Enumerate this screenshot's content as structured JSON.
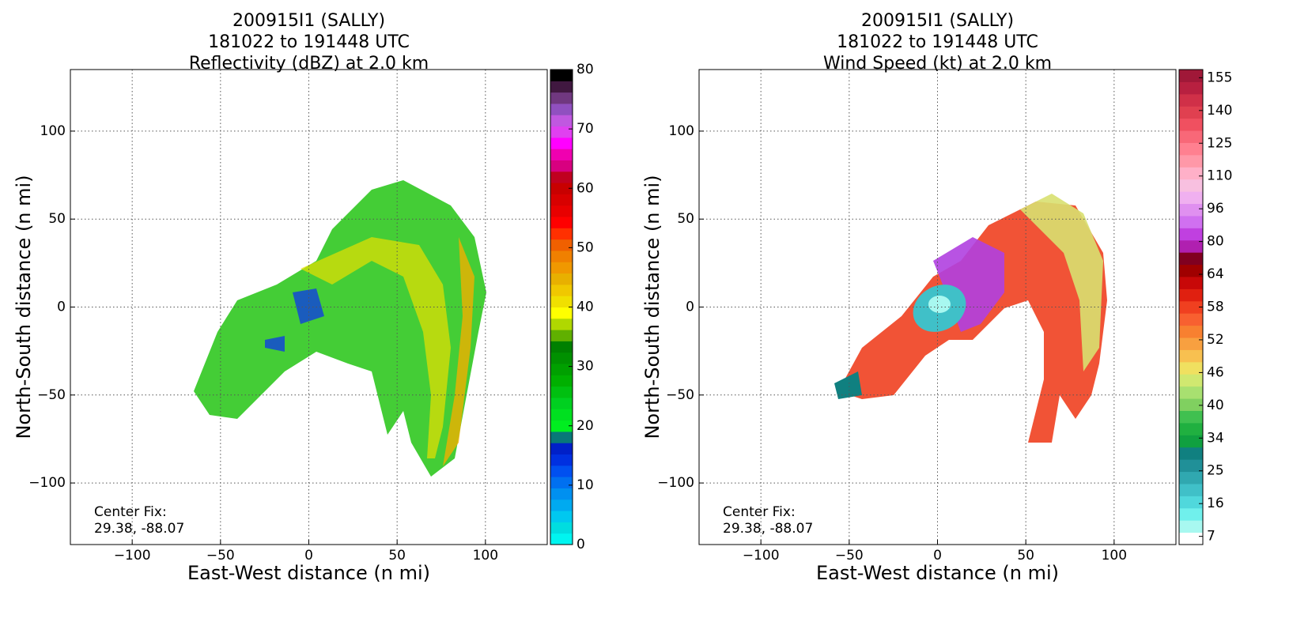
{
  "chart_data": [
    {
      "type": "contour",
      "title": [
        "200915I1 (SALLY)",
        "181022 to 191448 UTC",
        "Reflectivity (dBZ) at 2.0 km"
      ],
      "x_label": "East-West distance (n mi)",
      "y_label": "North-South distance (n mi)",
      "xlim": [
        -135,
        135
      ],
      "ylim": [
        -135,
        135
      ],
      "xticks": [
        {
          "value": -100,
          "label": "−100"
        },
        {
          "value": -50,
          "label": "−50"
        },
        0,
        50,
        100
      ],
      "yticks": [
        {
          "value": -100,
          "label": "−100"
        },
        {
          "value": -50,
          "label": "−50"
        },
        0,
        50,
        100
      ],
      "grid": true,
      "annotation": [
        "Center Fix:",
        "29.38, -88.07"
      ],
      "colorbar": {
        "lim": [
          0,
          80
        ],
        "ticks": [
          0,
          10,
          20,
          30,
          40,
          50,
          60,
          70,
          80
        ],
        "colors": [
          "#00f5f0",
          "#00dde0",
          "#00c8f0",
          "#00aaf0",
          "#0090f0",
          "#0070f0",
          "#0050f0",
          "#0030e0",
          "#0020c8",
          "#087878",
          "#00ee20",
          "#00e020",
          "#00d020",
          "#00c010",
          "#00b000",
          "#00a000",
          "#009000",
          "#008000",
          "#60b000",
          "#b0d800",
          "#ffff00",
          "#f0e000",
          "#f0c800",
          "#e8b000",
          "#f09800",
          "#f08000",
          "#f06000",
          "#ff3000",
          "#ff0000",
          "#e80000",
          "#d80000",
          "#c80000",
          "#c00020",
          "#d80080",
          "#f000b0",
          "#ff00ff",
          "#e040f0",
          "#c058e0",
          "#9050c0",
          "#703880",
          "#401840",
          "#000000"
        ]
      }
    },
    {
      "type": "contour",
      "title": [
        "200915I1 (SALLY)",
        "181022 to 191448 UTC",
        "Wind Speed (kt) at 2.0 km"
      ],
      "x_label": "East-West distance (n mi)",
      "y_label": "North-South distance (n mi)",
      "xlim": [
        -135,
        135
      ],
      "ylim": [
        -135,
        135
      ],
      "xticks": [
        {
          "value": -100,
          "label": "−100"
        },
        {
          "value": -50,
          "label": "−50"
        },
        0,
        50,
        100
      ],
      "yticks": [
        {
          "value": -100,
          "label": "−100"
        },
        {
          "value": -50,
          "label": "−50"
        },
        0,
        50,
        100
      ],
      "grid": true,
      "annotation": [
        "Center Fix:",
        "29.38, -88.07"
      ],
      "colorbar": {
        "ticks": [
          7,
          16,
          25,
          34,
          40,
          46,
          52,
          58,
          64,
          80,
          96,
          110,
          125,
          140,
          155
        ],
        "colors": [
          "#ffffff",
          "#a8f8f0",
          "#70f0ec",
          "#50d8dc",
          "#40c0c8",
          "#30a8b0",
          "#209098",
          "#108080",
          "#10a040",
          "#20b040",
          "#40c050",
          "#80d060",
          "#a8e070",
          "#d0e870",
          "#f0e060",
          "#f8c050",
          "#f8a040",
          "#f88030",
          "#f86030",
          "#f04020",
          "#e02010",
          "#c80808",
          "#a00000",
          "#800020",
          "#b020b0",
          "#c040e0",
          "#d070f0",
          "#e090f0",
          "#f0b0f0",
          "#f8c0e0",
          "#ffb0c8",
          "#ff98a8",
          "#ff8090",
          "#f86878",
          "#f05060",
          "#e04050",
          "#d03048",
          "#b82040",
          "#a01838"
        ]
      }
    }
  ]
}
